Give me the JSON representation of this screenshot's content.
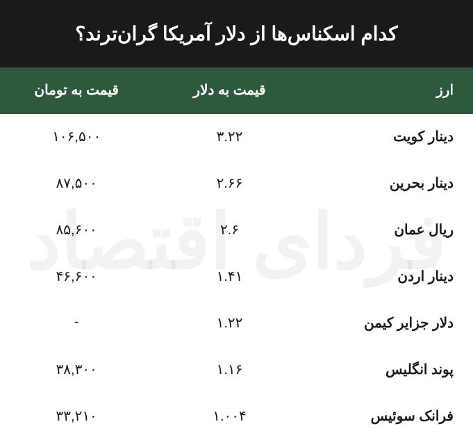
{
  "title": "کدام اسکناس‌ها از دلار آمریکا گران‌ترند؟",
  "columns": {
    "name": "ارز",
    "usd": "قیمت به دلار",
    "toman": "قیمت به تومان"
  },
  "rows": [
    {
      "name": "دینار کویت",
      "usd": "۳.۲۲",
      "toman": "۱۰۶,۵۰۰"
    },
    {
      "name": "دینار بحرین",
      "usd": "۲.۶۶",
      "toman": "۸۷,۵۰۰"
    },
    {
      "name": "ریال عمان",
      "usd": "۲.۶",
      "toman": "۸۵,۶۰۰"
    },
    {
      "name": "دینار اردن",
      "usd": "۱.۴۱",
      "toman": "۴۶,۶۰۰"
    },
    {
      "name": "دلار جزایر کیمن",
      "usd": "۱.۲۲",
      "toman": "-"
    },
    {
      "name": "پوند انگلیس",
      "usd": "۱.۱۶",
      "toman": "۳۸,۳۰۰"
    },
    {
      "name": "فرانک سوئیس",
      "usd": "۱.۰۰۴",
      "toman": "۳۳,۲۱۰"
    }
  ],
  "watermark": "فردای اقتصاد",
  "styles": {
    "title_bg": "#1a1a1a",
    "title_fg": "#ffffff",
    "header_bg": "#2d5a3d",
    "header_fg": "#ffffff",
    "body_bg": "#ffffff",
    "body_fg": "#1a1a1a",
    "title_fontsize": 28,
    "header_fontsize": 20,
    "cell_fontsize": 20,
    "watermark_color": "rgba(0,0,0,0.05)"
  }
}
